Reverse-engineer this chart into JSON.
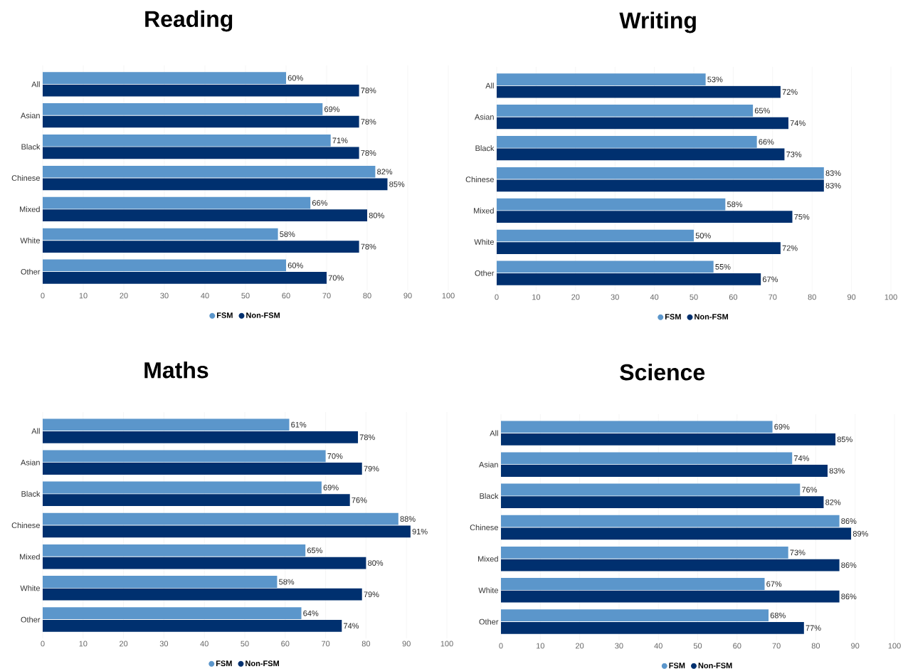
{
  "chart_data": [
    {
      "type": "bar",
      "orientation": "horizontal",
      "title": "Reading",
      "categories": [
        "All",
        "Asian",
        "Black",
        "Chinese",
        "Mixed",
        "White",
        "Other"
      ],
      "xlim": [
        0,
        100
      ],
      "xticks": [
        0,
        10,
        20,
        30,
        40,
        50,
        60,
        70,
        80,
        90,
        100
      ],
      "grid": "x",
      "legend": "bottom",
      "series": [
        {
          "name": "FSM",
          "color": "#5b96cb",
          "values": [
            60,
            69,
            71,
            82,
            66,
            58,
            60
          ],
          "value_labels": [
            "60%",
            "69%",
            "71%",
            "82%",
            "66%",
            "58%",
            "60%"
          ]
        },
        {
          "name": "Non-FSM",
          "color": "#00306f",
          "values": [
            78,
            78,
            78,
            85,
            80,
            78,
            70
          ],
          "value_labels": [
            "78%",
            "78%",
            "78%",
            "85%",
            "80%",
            "78%",
            "70%"
          ]
        }
      ]
    },
    {
      "type": "bar",
      "orientation": "horizontal",
      "title": "Writing",
      "categories": [
        "All",
        "Asian",
        "Black",
        "Chinese",
        "Mixed",
        "White",
        "Other"
      ],
      "xlim": [
        0,
        100
      ],
      "xticks": [
        0,
        10,
        20,
        30,
        40,
        50,
        60,
        70,
        80,
        90,
        100
      ],
      "grid": "x",
      "legend": "bottom",
      "series": [
        {
          "name": "FSM",
          "color": "#5b96cb",
          "values": [
            53,
            65,
            66,
            83,
            58,
            50,
            55
          ],
          "value_labels": [
            "53%",
            "65%",
            "66%",
            "83%",
            "58%",
            "50%",
            "55%"
          ]
        },
        {
          "name": "Non-FSM",
          "color": "#00306f",
          "values": [
            72,
            74,
            73,
            83,
            75,
            72,
            67
          ],
          "value_labels": [
            "72%",
            "74%",
            "73%",
            "83%",
            "75%",
            "72%",
            "67%"
          ]
        }
      ]
    },
    {
      "type": "bar",
      "orientation": "horizontal",
      "title": "Maths",
      "categories": [
        "All",
        "Asian",
        "Black",
        "Chinese",
        "Mixed",
        "White",
        "Other"
      ],
      "xlim": [
        0,
        100
      ],
      "xticks": [
        0,
        10,
        20,
        30,
        40,
        50,
        60,
        70,
        80,
        90,
        100
      ],
      "grid": "x",
      "legend": "bottom",
      "series": [
        {
          "name": "FSM",
          "color": "#5b96cb",
          "values": [
            61,
            70,
            69,
            88,
            65,
            58,
            64
          ],
          "value_labels": [
            "61%",
            "70%",
            "69%",
            "88%",
            "65%",
            "58%",
            "64%"
          ]
        },
        {
          "name": "Non-FSM",
          "color": "#00306f",
          "values": [
            78,
            79,
            76,
            91,
            80,
            79,
            74
          ],
          "value_labels": [
            "78%",
            "79%",
            "76%",
            "91%",
            "80%",
            "79%",
            "74%"
          ]
        }
      ]
    },
    {
      "type": "bar",
      "orientation": "horizontal",
      "title": "Science",
      "categories": [
        "All",
        "Asian",
        "Black",
        "Chinese",
        "Mixed",
        "White",
        "Other"
      ],
      "xlim": [
        0,
        100
      ],
      "xticks": [
        0,
        10,
        20,
        30,
        40,
        50,
        60,
        70,
        80,
        90,
        100
      ],
      "grid": "x",
      "legend": "bottom",
      "series": [
        {
          "name": "FSM",
          "color": "#5b96cb",
          "values": [
            69,
            74,
            76,
            86,
            73,
            67,
            68
          ],
          "value_labels": [
            "69%",
            "74%",
            "76%",
            "86%",
            "73%",
            "67%",
            "68%"
          ]
        },
        {
          "name": "Non-FSM",
          "color": "#00306f",
          "values": [
            85,
            83,
            82,
            89,
            86,
            86,
            77
          ],
          "value_labels": [
            "85%",
            "83%",
            "82%",
            "89%",
            "86%",
            "86%",
            "77%"
          ]
        }
      ]
    }
  ]
}
